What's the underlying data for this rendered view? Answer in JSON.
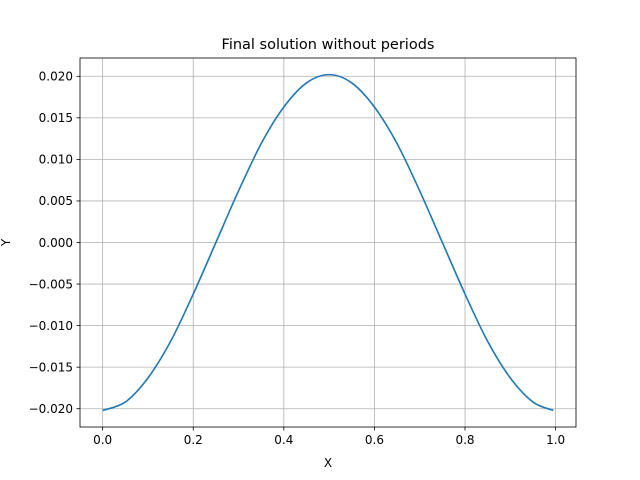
{
  "chart_data": {
    "type": "line",
    "title": "Final solution without periods",
    "xlabel": "X",
    "ylabel": "Y",
    "xlim": [
      -0.05,
      1.045
    ],
    "ylim": [
      -0.0222,
      0.0222
    ],
    "grid": true,
    "x_ticks": [
      0.0,
      0.2,
      0.4,
      0.6,
      0.8,
      1.0
    ],
    "x_tick_labels": [
      "0.0",
      "0.2",
      "0.4",
      "0.6",
      "0.8",
      "1.0"
    ],
    "y_ticks": [
      -0.02,
      -0.015,
      -0.01,
      -0.005,
      0.0,
      0.005,
      0.01,
      0.015,
      0.02
    ],
    "y_tick_labels": [
      "−0.020",
      "−0.015",
      "−0.010",
      "−0.005",
      "0.000",
      "0.005",
      "0.010",
      "0.015",
      "0.020"
    ],
    "series": [
      {
        "color": "#1f77b4",
        "x": [
          0.0,
          0.05,
          0.1,
          0.15,
          0.2,
          0.25,
          0.3,
          0.35,
          0.4,
          0.45,
          0.5,
          0.55,
          0.6,
          0.65,
          0.7,
          0.75,
          0.8,
          0.85,
          0.9,
          0.95,
          0.995
        ],
        "y": [
          -0.0202,
          -0.0192,
          -0.0163,
          -0.0119,
          -0.0062,
          0.0,
          0.0062,
          0.0119,
          0.0163,
          0.0192,
          0.0202,
          0.0192,
          0.0163,
          0.0119,
          0.0062,
          0.0,
          -0.0062,
          -0.0119,
          -0.0163,
          -0.0192,
          -0.0202
        ]
      }
    ]
  }
}
